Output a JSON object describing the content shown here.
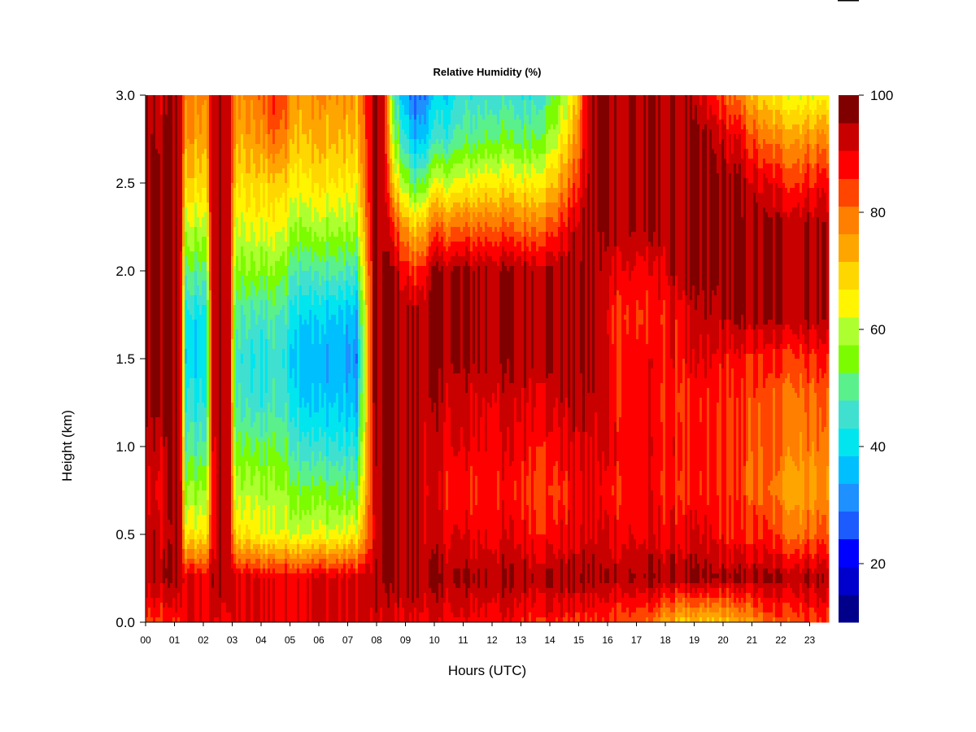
{
  "chart_data": {
    "type": "heatmap",
    "title": "Relative Humidity (%)",
    "xlabel": "Hours (UTC)",
    "ylabel": "Height (km)",
    "xlim": [
      0,
      24
    ],
    "ylim": [
      0.0,
      3.0
    ],
    "x_ticks": [
      "00",
      "01",
      "02",
      "03",
      "04",
      "05",
      "06",
      "07",
      "08",
      "09",
      "10",
      "11",
      "12",
      "13",
      "14",
      "15",
      "16",
      "17",
      "18",
      "19",
      "20",
      "21",
      "22",
      "23"
    ],
    "y_ticks": [
      "0.0",
      "0.5",
      "1.0",
      "1.5",
      "2.0",
      "2.5",
      "3.0"
    ],
    "colorbar": {
      "range": [
        10,
        100
      ],
      "step": 5,
      "tick_values": [
        20,
        40,
        60,
        80,
        100
      ],
      "tick_labels": [
        "20",
        "40",
        "60",
        "80",
        "100"
      ],
      "colors": [
        "#00008B",
        "#0000CD",
        "#0000FF",
        "#1C5CFF",
        "#1E90FF",
        "#00BFFF",
        "#00E5EE",
        "#40E0D0",
        "#5AF08C",
        "#7CFC00",
        "#ADFF2F",
        "#FFF500",
        "#FFD700",
        "#FFA500",
        "#FF7F00",
        "#FF4500",
        "#FF0000",
        "#C80000",
        "#800000"
      ]
    },
    "height_levels": [
      0.0,
      0.25,
      0.5,
      0.75,
      1.0,
      1.25,
      1.5,
      1.75,
      2.0,
      2.25,
      2.5,
      2.75,
      3.0
    ],
    "profiles": [
      {
        "hour": 0.0,
        "rh": [
          88,
          98,
          98,
          96,
          98,
          100,
          100,
          100,
          100,
          100,
          100,
          100,
          100
        ]
      },
      {
        "hour": 0.5,
        "rh": [
          88,
          98,
          96,
          92,
          96,
          100,
          100,
          100,
          100,
          100,
          100,
          98,
          96
        ]
      },
      {
        "hour": 0.9,
        "rh": [
          90,
          100,
          98,
          100,
          100,
          100,
          100,
          100,
          100,
          100,
          100,
          100,
          100
        ]
      },
      {
        "hour": 1.2,
        "rh": [
          92,
          100,
          100,
          100,
          100,
          100,
          100,
          100,
          100,
          100,
          100,
          100,
          100
        ]
      },
      {
        "hour": 1.4,
        "rh": [
          94,
          95,
          68,
          58,
          50,
          44,
          40,
          42,
          52,
          62,
          72,
          78,
          82
        ]
      },
      {
        "hour": 2.1,
        "rh": [
          94,
          95,
          70,
          62,
          52,
          46,
          42,
          44,
          54,
          64,
          72,
          78,
          82
        ]
      },
      {
        "hour": 2.3,
        "rh": [
          95,
          98,
          88,
          90,
          92,
          96,
          96,
          96,
          96,
          96,
          96,
          96,
          96
        ]
      },
      {
        "hour": 2.6,
        "rh": [
          95,
          100,
          100,
          100,
          100,
          100,
          100,
          100,
          100,
          100,
          100,
          100,
          100
        ]
      },
      {
        "hour": 2.9,
        "rh": [
          95,
          100,
          100,
          100,
          100,
          100,
          100,
          100,
          100,
          100,
          100,
          100,
          100
        ]
      },
      {
        "hour": 3.1,
        "rh": [
          95,
          95,
          70,
          62,
          56,
          50,
          48,
          52,
          58,
          64,
          70,
          76,
          80
        ]
      },
      {
        "hour": 3.8,
        "rh": [
          95,
          95,
          68,
          62,
          54,
          46,
          44,
          48,
          58,
          66,
          72,
          78,
          82
        ]
      },
      {
        "hour": 4.5,
        "rh": [
          95,
          95,
          66,
          62,
          56,
          50,
          48,
          52,
          60,
          68,
          74,
          86,
          92
        ]
      },
      {
        "hour": 5.2,
        "rh": [
          95,
          95,
          66,
          58,
          50,
          44,
          40,
          44,
          52,
          62,
          70,
          76,
          80
        ]
      },
      {
        "hour": 5.9,
        "rh": [
          96,
          96,
          66,
          56,
          46,
          38,
          36,
          40,
          50,
          62,
          70,
          76,
          80
        ]
      },
      {
        "hour": 6.5,
        "rh": [
          96,
          96,
          66,
          56,
          46,
          40,
          38,
          40,
          52,
          62,
          70,
          76,
          80
        ]
      },
      {
        "hour": 7.3,
        "rh": [
          96,
          96,
          68,
          54,
          44,
          36,
          32,
          36,
          48,
          60,
          68,
          74,
          78
        ]
      },
      {
        "hour": 7.9,
        "rh": [
          96,
          98,
          92,
          94,
          96,
          98,
          98,
          98,
          98,
          98,
          98,
          98,
          98
        ]
      },
      {
        "hour": 8.2,
        "rh": [
          96,
          100,
          100,
          100,
          100,
          100,
          100,
          100,
          100,
          100,
          100,
          100,
          100
        ]
      },
      {
        "hour": 8.6,
        "rh": [
          96,
          100,
          100,
          100,
          100,
          100,
          100,
          100,
          100,
          90,
          72,
          60,
          50
        ]
      },
      {
        "hour": 9.3,
        "rh": [
          95,
          100,
          100,
          100,
          100,
          100,
          100,
          100,
          88,
          72,
          52,
          36,
          26
        ]
      },
      {
        "hour": 10.0,
        "rh": [
          94,
          100,
          96,
          94,
          96,
          98,
          100,
          100,
          100,
          84,
          64,
          46,
          38
        ]
      },
      {
        "hour": 11.0,
        "rh": [
          93,
          100,
          94,
          90,
          94,
          96,
          100,
          100,
          100,
          84,
          66,
          52,
          46
        ]
      },
      {
        "hour": 12.0,
        "rh": [
          93,
          100,
          94,
          92,
          94,
          96,
          100,
          100,
          100,
          86,
          70,
          56,
          48
        ]
      },
      {
        "hour": 13.0,
        "rh": [
          92,
          100,
          94,
          90,
          94,
          96,
          100,
          100,
          100,
          84,
          68,
          54,
          46
        ]
      },
      {
        "hour": 14.0,
        "rh": [
          92,
          100,
          92,
          88,
          92,
          96,
          100,
          100,
          100,
          86,
          72,
          60,
          52
        ]
      },
      {
        "hour": 14.8,
        "rh": [
          90,
          100,
          94,
          92,
          96,
          98,
          100,
          100,
          100,
          96,
          86,
          76,
          68
        ]
      },
      {
        "hour": 15.4,
        "rh": [
          90,
          100,
          96,
          94,
          96,
          98,
          100,
          100,
          100,
          100,
          100,
          100,
          100
        ]
      },
      {
        "hour": 16.3,
        "rh": [
          88,
          100,
          94,
          92,
          94,
          92,
          92,
          90,
          96,
          100,
          100,
          100,
          100
        ]
      },
      {
        "hour": 17.5,
        "rh": [
          84,
          100,
          94,
          92,
          92,
          92,
          92,
          90,
          92,
          100,
          100,
          100,
          100
        ]
      },
      {
        "hour": 18.5,
        "rh": [
          74,
          100,
          94,
          90,
          92,
          90,
          92,
          94,
          100,
          100,
          100,
          100,
          100
        ]
      },
      {
        "hour": 19.5,
        "rh": [
          72,
          100,
          94,
          90,
          90,
          90,
          94,
          98,
          100,
          100,
          100,
          100,
          92
        ]
      },
      {
        "hour": 20.5,
        "rh": [
          76,
          100,
          90,
          88,
          88,
          88,
          92,
          100,
          100,
          100,
          100,
          94,
          82
        ]
      },
      {
        "hour": 21.5,
        "rh": [
          84,
          100,
          90,
          84,
          86,
          86,
          90,
          100,
          100,
          100,
          94,
          82,
          70
        ]
      },
      {
        "hour": 22.5,
        "rh": [
          88,
          100,
          84,
          78,
          82,
          84,
          90,
          100,
          100,
          100,
          90,
          80,
          66
        ]
      },
      {
        "hour": 23.8,
        "rh": [
          90,
          100,
          88,
          82,
          84,
          86,
          92,
          100,
          100,
          100,
          94,
          82,
          68
        ]
      }
    ]
  }
}
